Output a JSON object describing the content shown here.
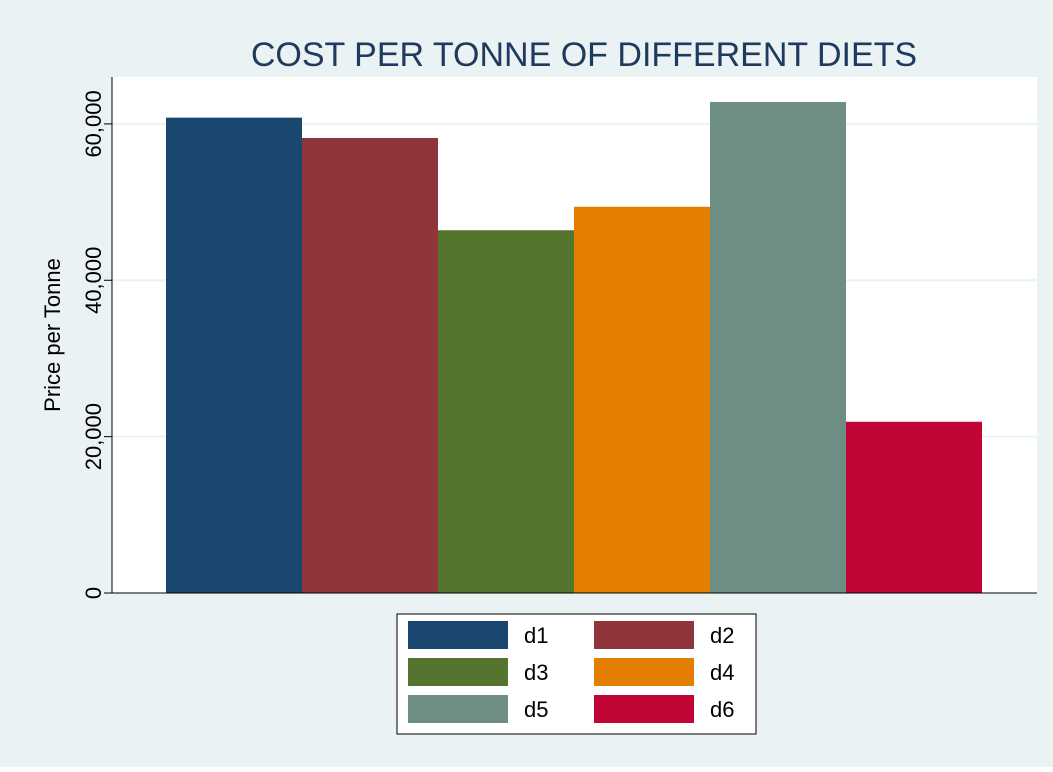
{
  "chart_data": {
    "type": "bar",
    "title": "COST PER TONNE OF DIFFERENT DIETS",
    "xlabel": "",
    "ylabel": "Price per Tonne",
    "ylim": [
      0,
      66000
    ],
    "yticks": [
      0,
      20000,
      40000,
      60000
    ],
    "ytick_labels": [
      "0",
      "20,000",
      "40,000",
      "60,000"
    ],
    "grid": true,
    "legend_position": "bottom",
    "categories": [
      "d1",
      "d2",
      "d3",
      "d4",
      "d5",
      "d6"
    ],
    "values": [
      60800,
      58200,
      46400,
      49400,
      62800,
      21900
    ],
    "colors": [
      "#1a476f",
      "#90353b",
      "#55752f",
      "#e37e00",
      "#6e8e84",
      "#c10534"
    ]
  },
  "theme": {
    "outer_background": "#eaf2f3",
    "plot_background": "#ffffff",
    "gridline": "#eaf2f3",
    "title_color": "#1e3a5f",
    "text_color": "#000000"
  }
}
